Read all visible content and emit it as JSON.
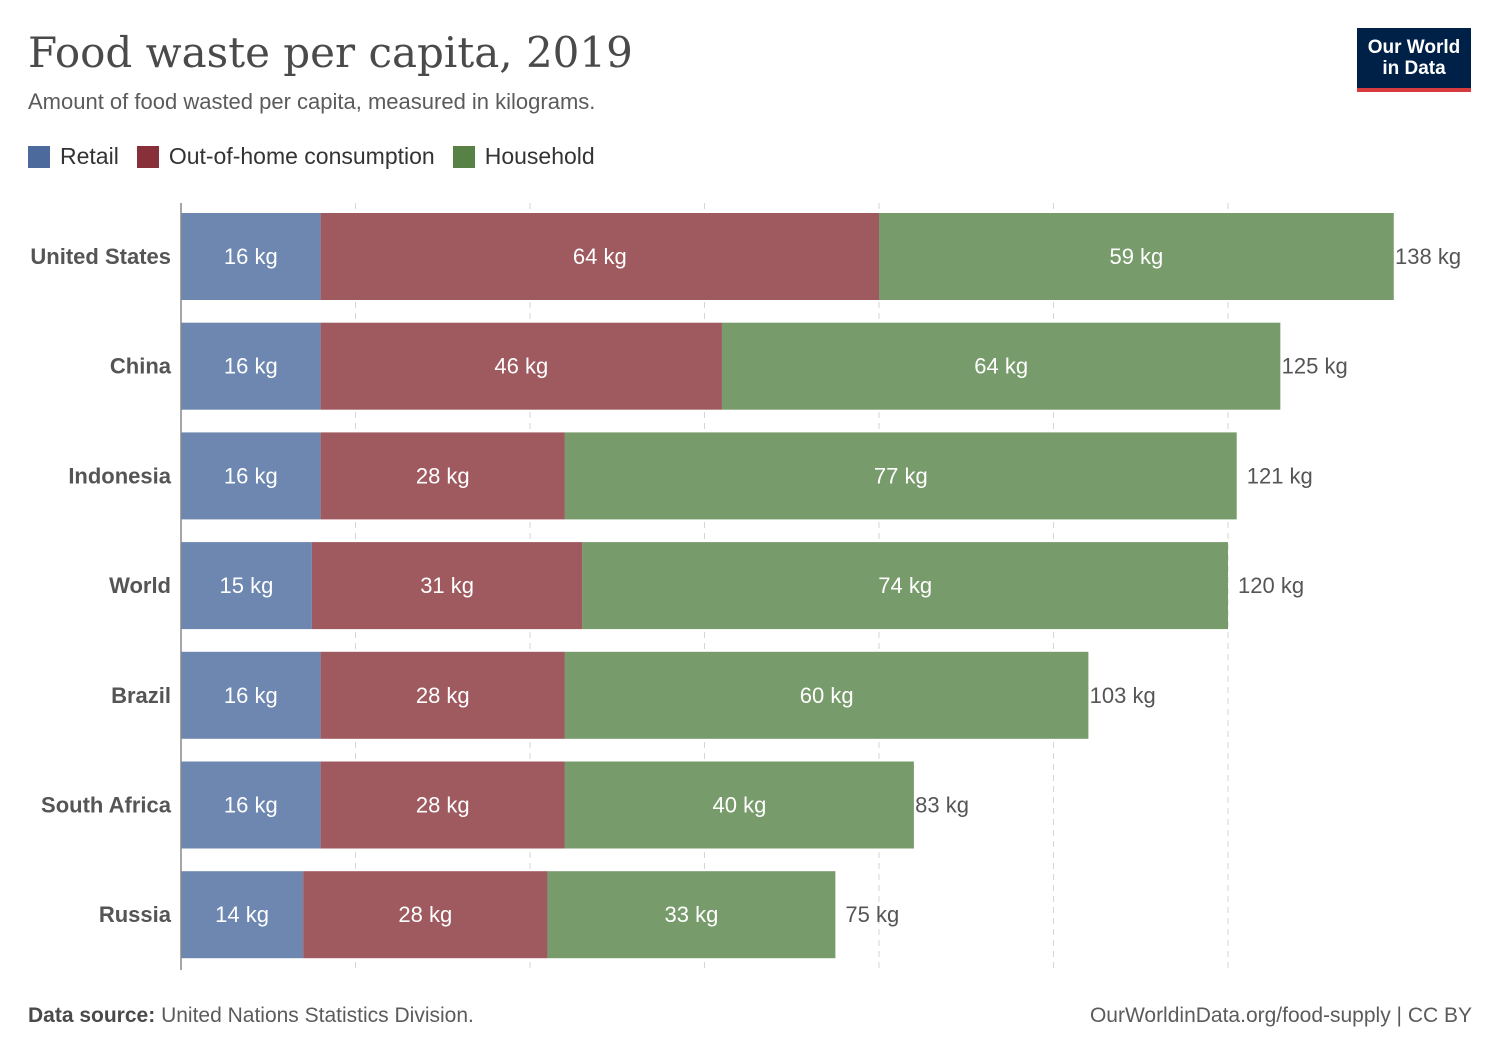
{
  "header": {
    "title": "Food waste per capita, 2019",
    "subtitle": "Amount of food wasted per capita, measured in kilograms.",
    "logo_line1": "Our World",
    "logo_line2": "in Data"
  },
  "footer": {
    "source_label": "Data source:",
    "source_text": "United Nations Statistics Division.",
    "url": "OurWorldinData.org/food-supply | CC BY"
  },
  "colors": {
    "retail": "#6d87b0",
    "out_of_home": "#9f5a5f",
    "household": "#789b6b",
    "legend_retail": "#4c6a9c",
    "legend_out_of_home": "#883039",
    "legend_household": "#578145"
  },
  "chart_data": {
    "type": "bar",
    "orientation": "horizontal",
    "stacked": true,
    "unit": "kg",
    "title": "Food waste per capita, 2019",
    "subtitle": "Amount of food wasted per capita, measured in kilograms.",
    "categories": [
      "United States",
      "China",
      "Indonesia",
      "World",
      "Brazil",
      "South Africa",
      "Russia"
    ],
    "series": [
      {
        "name": "Retail",
        "values": [
          16,
          16,
          16,
          15,
          16,
          16,
          14
        ]
      },
      {
        "name": "Out-of-home consumption",
        "values": [
          64,
          46,
          28,
          31,
          28,
          28,
          28
        ]
      },
      {
        "name": "Household",
        "values": [
          59,
          64,
          77,
          74,
          60,
          40,
          33
        ]
      }
    ],
    "totals": [
      138,
      125,
      121,
      120,
      103,
      83,
      75
    ],
    "xlim": [
      0,
      140
    ],
    "grid": true,
    "legend_position": "top-left"
  }
}
